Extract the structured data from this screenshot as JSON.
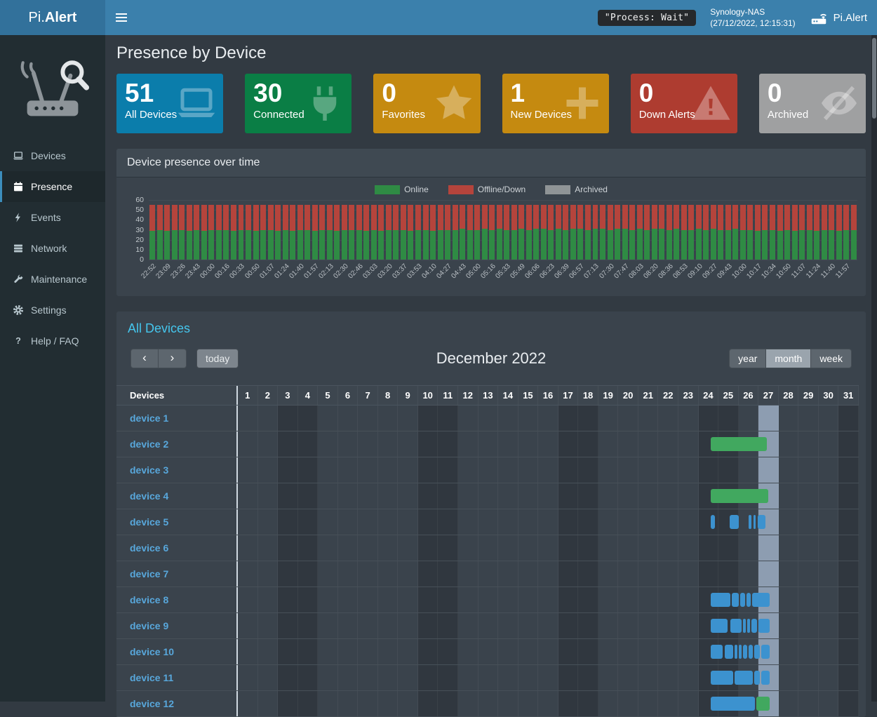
{
  "navbar": {
    "brand_prefix": "Pi.",
    "brand_bold": "Alert",
    "process_status": "\"Process: Wait\"",
    "host_name": "Synology-NAS",
    "host_time": "(27/12/2022, 12:15:31)",
    "right_brand": "Pi.Alert"
  },
  "sidebar": {
    "items": [
      {
        "label": "Devices",
        "icon": "laptop-icon",
        "active": false
      },
      {
        "label": "Presence",
        "icon": "calendar-icon",
        "active": true
      },
      {
        "label": "Events",
        "icon": "bolt-icon",
        "active": false
      },
      {
        "label": "Network",
        "icon": "network-icon",
        "active": false
      },
      {
        "label": "Maintenance",
        "icon": "wrench-icon",
        "active": false
      },
      {
        "label": "Settings",
        "icon": "gear-icon",
        "active": false
      },
      {
        "label": "Help / FAQ",
        "icon": "question-icon",
        "active": false
      }
    ]
  },
  "page": {
    "title": "Presence by Device"
  },
  "info_boxes": [
    {
      "value": "51",
      "label": "All Devices",
      "color": "#0b7dab",
      "icon": "laptop-icon"
    },
    {
      "value": "30",
      "label": "Connected",
      "color": "#0a7e45",
      "icon": "plug-icon"
    },
    {
      "value": "0",
      "label": "Favorites",
      "color": "#c58a10",
      "icon": "star-icon"
    },
    {
      "value": "1",
      "label": "New Devices",
      "color": "#c58a10",
      "icon": "plus-icon"
    },
    {
      "value": "0",
      "label": "Down Alerts",
      "color": "#ae3c30",
      "icon": "warning-icon"
    },
    {
      "value": "0",
      "label": "Archived",
      "color": "#9fa0a1",
      "icon": "eye-slash-icon"
    }
  ],
  "presence_panel": {
    "title": "Device presence over time",
    "legend": [
      {
        "label": "Online",
        "color": "#2f8b44"
      },
      {
        "label": "Offline/Down",
        "color": "#b5443c"
      },
      {
        "label": "Archived",
        "color": "#8f9496"
      }
    ]
  },
  "chart_data": {
    "type": "bar",
    "stacked": true,
    "title": "Device presence over time",
    "ylim": [
      0,
      60
    ],
    "yticks": [
      0,
      10,
      20,
      30,
      40,
      50,
      60
    ],
    "x_tick_labels": [
      "22:52",
      "23:09",
      "23:26",
      "23:43",
      "00:00",
      "00:16",
      "00:33",
      "00:50",
      "01:07",
      "01:24",
      "01:40",
      "01:57",
      "02:13",
      "02:30",
      "02:46",
      "03:03",
      "03:20",
      "03:37",
      "03:53",
      "04:10",
      "04:27",
      "04:43",
      "05:00",
      "05:16",
      "05:33",
      "05:49",
      "06:06",
      "06:23",
      "06:39",
      "06:57",
      "07:13",
      "07:30",
      "07:47",
      "08:03",
      "08:20",
      "08:36",
      "08:53",
      "09:10",
      "09:27",
      "09:43",
      "10:00",
      "10:17",
      "10:34",
      "10:50",
      "11:07",
      "11:24",
      "11:40",
      "11:57"
    ],
    "series": [
      {
        "name": "Online",
        "color": "#2f8b44",
        "values": [
          29,
          30,
          29,
          30,
          30,
          29,
          30,
          29,
          30,
          30,
          30,
          29,
          30,
          30,
          29,
          30,
          30,
          29,
          30,
          29,
          30,
          30,
          29,
          30,
          30,
          29,
          30,
          30,
          30,
          29,
          30,
          29,
          30,
          30,
          30,
          29,
          30,
          30,
          29,
          30,
          30,
          30,
          31,
          30,
          30,
          31,
          30,
          31,
          30,
          30,
          31,
          30,
          31,
          31,
          30,
          31,
          30,
          31,
          31,
          30,
          31,
          31,
          30,
          31,
          31,
          30,
          31,
          30,
          31,
          31,
          30,
          31,
          30,
          30,
          31,
          30,
          31,
          30,
          30,
          31,
          30,
          30,
          29,
          30,
          30,
          29,
          30,
          29,
          30,
          30,
          29,
          30,
          30,
          29,
          30,
          30
        ]
      },
      {
        "name": "Offline/Down",
        "color": "#b5443c",
        "values": [
          26,
          25,
          26,
          25,
          25,
          26,
          25,
          26,
          25,
          25,
          25,
          26,
          25,
          25,
          26,
          25,
          25,
          26,
          25,
          26,
          25,
          25,
          26,
          25,
          25,
          26,
          25,
          25,
          25,
          26,
          25,
          26,
          25,
          25,
          25,
          26,
          25,
          25,
          26,
          25,
          25,
          25,
          24,
          25,
          25,
          24,
          25,
          24,
          25,
          25,
          24,
          25,
          24,
          24,
          25,
          24,
          25,
          24,
          24,
          25,
          24,
          24,
          25,
          24,
          24,
          25,
          24,
          25,
          24,
          24,
          25,
          24,
          25,
          25,
          24,
          25,
          24,
          25,
          25,
          24,
          25,
          25,
          26,
          25,
          25,
          26,
          25,
          26,
          25,
          25,
          26,
          25,
          25,
          26,
          25,
          25
        ]
      },
      {
        "name": "Archived",
        "color": "#8f9496",
        "values": []
      }
    ],
    "legend_position": "top",
    "grid": false
  },
  "calendar": {
    "section_title": "All Devices",
    "toolbar": {
      "prev": "‹",
      "next": "›",
      "today": "today",
      "title": "December 2022",
      "views": [
        "year",
        "month",
        "week"
      ],
      "active_view": "month"
    },
    "device_header": "Devices",
    "days": [
      1,
      2,
      3,
      4,
      5,
      6,
      7,
      8,
      9,
      10,
      11,
      12,
      13,
      14,
      15,
      16,
      17,
      18,
      19,
      20,
      21,
      22,
      23,
      24,
      25,
      26,
      27,
      28,
      29,
      30,
      31
    ],
    "weekend_days": [
      3,
      4,
      10,
      11,
      17,
      18,
      24,
      25,
      31
    ],
    "today_day": 27,
    "bar_colors": {
      "green": "#41a85f",
      "blue": "#3c92cf"
    },
    "devices": [
      {
        "name": "device 1",
        "bars": []
      },
      {
        "name": "device 2",
        "bars": [
          {
            "start": 23.6,
            "end": 26.42,
            "color": "green"
          }
        ]
      },
      {
        "name": "device 3",
        "bars": []
      },
      {
        "name": "device 4",
        "bars": [
          {
            "start": 23.6,
            "end": 26.47,
            "color": "green"
          }
        ]
      },
      {
        "name": "device 5",
        "bars": [
          {
            "start": 23.6,
            "end": 23.81,
            "color": "blue"
          },
          {
            "start": 24.54,
            "end": 25.0,
            "color": "blue"
          },
          {
            "start": 25.49,
            "end": 25.63,
            "color": "blue"
          },
          {
            "start": 25.74,
            "end": 25.84,
            "color": "blue"
          },
          {
            "start": 25.95,
            "end": 26.33,
            "color": "blue"
          }
        ]
      },
      {
        "name": "device 6",
        "bars": []
      },
      {
        "name": "device 7",
        "bars": []
      },
      {
        "name": "device 8",
        "bars": [
          {
            "start": 23.6,
            "end": 24.58,
            "color": "blue"
          },
          {
            "start": 24.65,
            "end": 25.0,
            "color": "blue"
          },
          {
            "start": 25.07,
            "end": 25.32,
            "color": "blue"
          },
          {
            "start": 25.39,
            "end": 25.6,
            "color": "blue"
          },
          {
            "start": 25.67,
            "end": 26.54,
            "color": "blue"
          }
        ]
      },
      {
        "name": "device 9",
        "bars": [
          {
            "start": 23.6,
            "end": 24.44,
            "color": "blue"
          },
          {
            "start": 24.58,
            "end": 25.14,
            "color": "blue"
          },
          {
            "start": 25.21,
            "end": 25.35,
            "color": "blue"
          },
          {
            "start": 25.42,
            "end": 25.56,
            "color": "blue"
          },
          {
            "start": 25.63,
            "end": 25.91,
            "color": "blue"
          },
          {
            "start": 25.98,
            "end": 26.54,
            "color": "blue"
          }
        ]
      },
      {
        "name": "device 10",
        "bars": [
          {
            "start": 23.6,
            "end": 24.22,
            "color": "blue"
          },
          {
            "start": 24.3,
            "end": 24.72,
            "color": "blue"
          },
          {
            "start": 24.79,
            "end": 24.93,
            "color": "blue"
          },
          {
            "start": 25.0,
            "end": 25.14,
            "color": "blue"
          },
          {
            "start": 25.21,
            "end": 25.42,
            "color": "blue"
          },
          {
            "start": 25.49,
            "end": 25.7,
            "color": "blue"
          },
          {
            "start": 25.77,
            "end": 26.05,
            "color": "blue"
          },
          {
            "start": 26.12,
            "end": 26.54,
            "color": "blue"
          }
        ]
      },
      {
        "name": "device 11",
        "bars": [
          {
            "start": 23.6,
            "end": 24.72,
            "color": "blue"
          },
          {
            "start": 24.79,
            "end": 25.7,
            "color": "blue"
          },
          {
            "start": 25.77,
            "end": 26.05,
            "color": "blue"
          },
          {
            "start": 26.12,
            "end": 26.54,
            "color": "blue"
          }
        ]
      },
      {
        "name": "device 12",
        "bars": [
          {
            "start": 23.6,
            "end": 25.8,
            "color": "blue"
          },
          {
            "start": 25.87,
            "end": 26.54,
            "color": "green"
          }
        ]
      }
    ]
  }
}
